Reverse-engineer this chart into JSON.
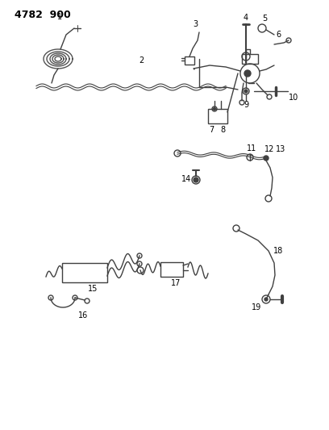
{
  "title": "4782  900",
  "background_color": "#ffffff",
  "line_color": "#404040",
  "label_color": "#000000",
  "figsize": [
    4.08,
    5.33
  ],
  "dpi": 100
}
